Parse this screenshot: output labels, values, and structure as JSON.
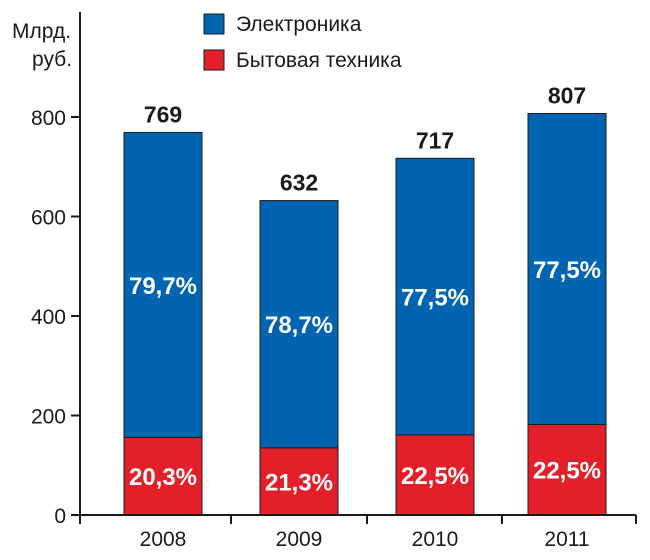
{
  "chart_data": {
    "type": "bar",
    "stacked": true,
    "unit_label": [
      "Млрд.",
      "руб."
    ],
    "categories": [
      "2008",
      "2009",
      "2010",
      "2011"
    ],
    "totals": [
      769,
      632,
      717,
      807
    ],
    "series": [
      {
        "name": "Бытовая техника",
        "color": "#e3202a",
        "share_labels": [
          "20,3%",
          "21,3%",
          "22,5%",
          "22,5%"
        ],
        "values": [
          156,
          135,
          161,
          182
        ]
      },
      {
        "name": "Электроника",
        "color": "#0064b1",
        "share_labels": [
          "79,7%",
          "78,7%",
          "77,5%",
          "77,5%"
        ],
        "values": [
          613,
          497,
          556,
          625
        ]
      }
    ],
    "ylim": [
      0,
      900
    ],
    "yticks": [
      0,
      200,
      400,
      600,
      800
    ],
    "grid": false,
    "legend_position": "top"
  }
}
